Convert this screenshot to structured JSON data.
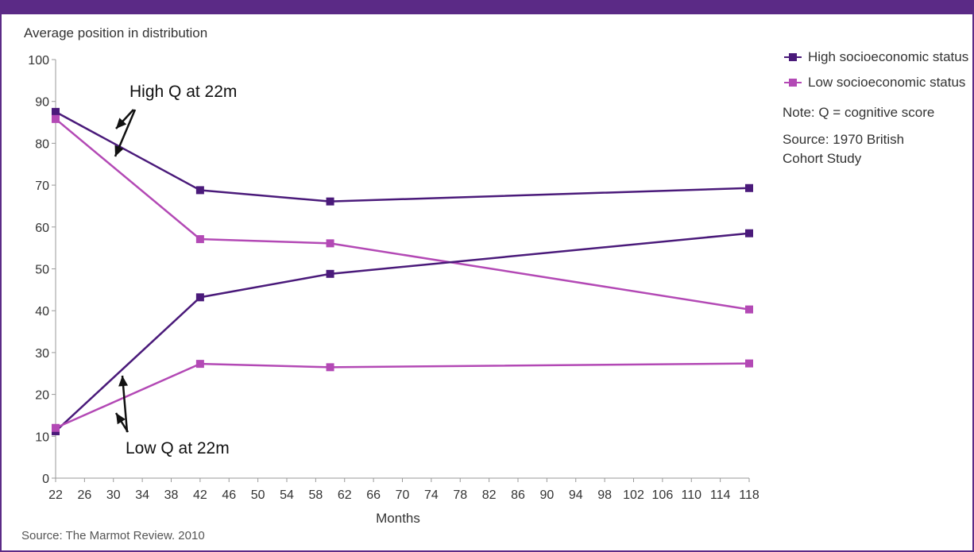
{
  "chart_data": {
    "type": "line",
    "ylabel": "Average position in distribution",
    "xlabel": "Months",
    "x": [
      22,
      42,
      60,
      118
    ],
    "xticks": [
      22,
      26,
      30,
      34,
      38,
      42,
      46,
      50,
      54,
      58,
      62,
      66,
      70,
      74,
      78,
      82,
      86,
      90,
      94,
      98,
      102,
      106,
      110,
      114,
      118
    ],
    "xlim": [
      22,
      118
    ],
    "ylim": [
      0,
      100
    ],
    "yticks": [
      0,
      10,
      20,
      30,
      40,
      50,
      60,
      70,
      80,
      90,
      100
    ],
    "grid": false,
    "legend_position": "right",
    "series": [
      {
        "name": "High socioeconomic status",
        "group": "High Q at 22m",
        "color": "#4a1a7a",
        "values": [
          87.5,
          68.8,
          66.1,
          69.3
        ]
      },
      {
        "name": "Low socioeconomic status",
        "group": "High Q at 22m",
        "color": "#b349b5",
        "values": [
          85.8,
          57.1,
          56.1,
          40.3
        ]
      },
      {
        "name": "High socioeconomic status",
        "group": "Low Q at 22m",
        "color": "#4a1a7a",
        "values": [
          11.2,
          43.2,
          48.8,
          58.5
        ]
      },
      {
        "name": "Low socioeconomic status",
        "group": "Low Q at 22m",
        "color": "#b349b5",
        "values": [
          12.0,
          27.3,
          26.5,
          27.4
        ]
      }
    ],
    "annotations": [
      "High Q at 22m",
      "Low Q at 22m"
    ]
  },
  "legend": {
    "items": [
      {
        "label": "High socioeconomic status",
        "color": "#4a1a7a"
      },
      {
        "label": "Low socioeconomic status",
        "color": "#b349b5"
      }
    ],
    "note": "Note: Q = cognitive score",
    "source": "Source: 1970 British Cohort Study"
  },
  "footer": {
    "source": "Source: The Marmot Review. 2010"
  },
  "colors": {
    "frame": "#5b2a86",
    "axis": "#999999"
  }
}
